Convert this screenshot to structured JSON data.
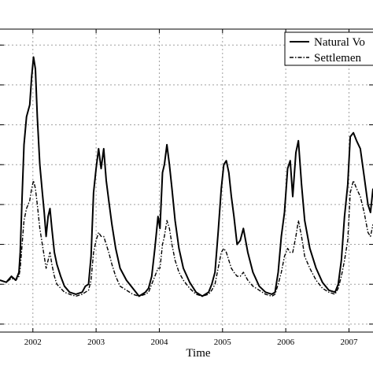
{
  "chart_data": {
    "type": "line",
    "xlabel": "Time",
    "ylabel": "",
    "title": "",
    "xlim": [
      2001.4,
      2007.3
    ],
    "ylim": [
      -0.2,
      7.4
    ],
    "x_ticks": [
      "2002",
      "2003",
      "2004",
      "2005",
      "2006",
      "2007"
    ],
    "x_tick_values": [
      2001.92,
      2002.92,
      2003.92,
      2004.92,
      2005.92,
      2006.92
    ],
    "grid": true,
    "legend_position": "top-right",
    "series": [
      {
        "name": "Natural Vo",
        "style": "solid",
        "color": "#000000",
        "x": [
          2001.4,
          2001.5,
          2001.58,
          2001.65,
          2001.7,
          2001.72,
          2001.75,
          2001.78,
          2001.82,
          2001.87,
          2001.9,
          2001.93,
          2001.96,
          2001.99,
          2002.03,
          2002.07,
          2002.1,
          2002.13,
          2002.16,
          2002.19,
          2002.22,
          2002.26,
          2002.3,
          2002.36,
          2002.42,
          2002.5,
          2002.6,
          2002.7,
          2002.75,
          2002.8,
          2002.84,
          2002.88,
          2002.92,
          2002.96,
          2003.0,
          2003.04,
          2003.08,
          2003.12,
          2003.17,
          2003.23,
          2003.3,
          2003.4,
          2003.5,
          2003.6,
          2003.7,
          2003.75,
          2003.8,
          2003.85,
          2003.9,
          2003.93,
          2003.97,
          2004.0,
          2004.04,
          2004.08,
          2004.12,
          2004.17,
          2004.23,
          2004.3,
          2004.4,
          2004.5,
          2004.6,
          2004.7,
          2004.75,
          2004.8,
          2004.85,
          2004.9,
          2004.94,
          2004.98,
          2005.02,
          2005.06,
          2005.1,
          2005.15,
          2005.2,
          2005.25,
          2005.32,
          2005.4,
          2005.5,
          2005.6,
          2005.7,
          2005.75,
          2005.8,
          2005.85,
          2005.9,
          2005.95,
          2005.99,
          2006.03,
          2006.08,
          2006.12,
          2006.17,
          2006.22,
          2006.3,
          2006.4,
          2006.5,
          2006.6,
          2006.7,
          2006.75,
          2006.8,
          2006.85,
          2006.9,
          2006.94,
          2006.99,
          2007.04,
          2007.1,
          2007.16,
          2007.22,
          2007.26,
          2007.3
        ],
        "y": [
          1.1,
          1.05,
          1.2,
          1.1,
          1.3,
          1.8,
          3.2,
          4.5,
          5.2,
          5.5,
          6.2,
          6.7,
          6.4,
          5.2,
          4.0,
          3.3,
          2.8,
          2.2,
          2.7,
          2.9,
          2.4,
          1.8,
          1.5,
          1.2,
          0.95,
          0.8,
          0.75,
          0.8,
          0.95,
          1.0,
          1.7,
          3.3,
          3.9,
          4.4,
          3.9,
          4.4,
          3.6,
          3.1,
          2.5,
          1.9,
          1.4,
          1.1,
          0.9,
          0.7,
          0.8,
          0.9,
          1.2,
          1.9,
          2.7,
          2.4,
          3.8,
          4.0,
          4.5,
          4.0,
          3.4,
          2.6,
          1.9,
          1.4,
          1.05,
          0.8,
          0.7,
          0.8,
          1.0,
          1.3,
          2.3,
          3.4,
          4.0,
          4.1,
          3.8,
          3.2,
          2.7,
          2.0,
          2.1,
          2.4,
          1.8,
          1.3,
          0.95,
          0.8,
          0.75,
          0.8,
          1.3,
          2.2,
          2.8,
          3.9,
          4.1,
          3.2,
          4.3,
          4.6,
          3.5,
          2.6,
          1.9,
          1.4,
          1.05,
          0.85,
          0.8,
          1.0,
          1.6,
          2.7,
          3.5,
          4.7,
          4.8,
          4.6,
          4.4,
          3.7,
          3.0,
          2.8,
          3.4
        ]
      },
      {
        "name": "Settlemen",
        "style": "dashdot",
        "color": "#000000",
        "x": [
          2001.4,
          2001.5,
          2001.58,
          2001.65,
          2001.7,
          2001.72,
          2001.75,
          2001.78,
          2001.82,
          2001.87,
          2001.9,
          2001.93,
          2001.96,
          2001.99,
          2002.03,
          2002.07,
          2002.1,
          2002.13,
          2002.16,
          2002.19,
          2002.22,
          2002.26,
          2002.3,
          2002.36,
          2002.42,
          2002.5,
          2002.6,
          2002.7,
          2002.75,
          2002.8,
          2002.84,
          2002.88,
          2002.92,
          2002.96,
          2003.0,
          2003.04,
          2003.08,
          2003.12,
          2003.17,
          2003.23,
          2003.3,
          2003.4,
          2003.5,
          2003.6,
          2003.7,
          2003.75,
          2003.8,
          2003.85,
          2003.9,
          2003.93,
          2003.97,
          2004.0,
          2004.04,
          2004.08,
          2004.12,
          2004.17,
          2004.23,
          2004.3,
          2004.4,
          2004.5,
          2004.6,
          2004.7,
          2004.75,
          2004.8,
          2004.85,
          2004.9,
          2004.94,
          2004.98,
          2005.02,
          2005.06,
          2005.1,
          2005.15,
          2005.2,
          2005.25,
          2005.32,
          2005.4,
          2005.5,
          2005.6,
          2005.7,
          2005.75,
          2005.8,
          2005.85,
          2005.9,
          2005.95,
          2005.99,
          2006.03,
          2006.08,
          2006.12,
          2006.17,
          2006.22,
          2006.3,
          2006.4,
          2006.5,
          2006.6,
          2006.7,
          2006.75,
          2006.8,
          2006.85,
          2006.9,
          2006.94,
          2006.99,
          2007.04,
          2007.1,
          2007.16,
          2007.22,
          2007.26,
          2007.3
        ],
        "y": [
          1.1,
          1.05,
          1.15,
          1.1,
          1.2,
          1.4,
          2.0,
          2.6,
          2.9,
          3.1,
          3.4,
          3.6,
          3.4,
          3.0,
          2.4,
          2.0,
          1.7,
          1.4,
          1.6,
          1.8,
          1.5,
          1.2,
          1.0,
          0.9,
          0.8,
          0.75,
          0.7,
          0.75,
          0.8,
          0.85,
          1.1,
          1.8,
          2.1,
          2.3,
          2.2,
          2.2,
          2.0,
          1.8,
          1.5,
          1.2,
          0.95,
          0.85,
          0.75,
          0.7,
          0.75,
          0.8,
          1.0,
          1.2,
          1.4,
          1.4,
          2.0,
          2.2,
          2.6,
          2.4,
          2.0,
          1.6,
          1.3,
          1.1,
          0.9,
          0.75,
          0.7,
          0.75,
          0.85,
          1.0,
          1.4,
          1.8,
          1.9,
          1.8,
          1.6,
          1.4,
          1.3,
          1.2,
          1.2,
          1.3,
          1.1,
          0.95,
          0.85,
          0.75,
          0.7,
          0.75,
          1.0,
          1.3,
          1.7,
          1.9,
          1.8,
          1.8,
          2.2,
          2.6,
          2.2,
          1.7,
          1.4,
          1.1,
          0.9,
          0.8,
          0.75,
          0.9,
          1.2,
          1.6,
          2.1,
          3.3,
          3.6,
          3.4,
          3.2,
          2.8,
          2.3,
          2.2,
          2.5
        ]
      }
    ]
  }
}
